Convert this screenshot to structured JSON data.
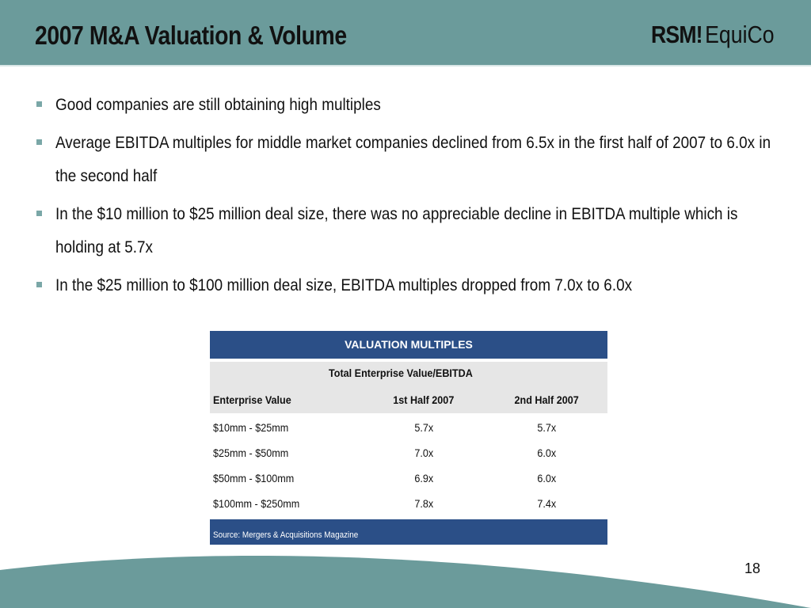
{
  "header": {
    "title": "2007 M&A Valuation & Volume",
    "logo_rsm": "RSM!",
    "logo_equico": "EquiCo"
  },
  "bullets": [
    "Good companies are still obtaining high multiples",
    "Average EBITDA multiples for middle market companies declined from 6.5x in the first half of 2007 to 6.0x in the second half",
    "In the $10 million to $25 million deal size, there was no appreciable decline in EBITDA multiple which is holding at 5.7x",
    "In the $25 million to $100 million deal size, EBITDA multiples dropped from 7.0x to 6.0x"
  ],
  "table": {
    "title": "VALUATION MULTIPLES",
    "super_header": "Total Enterprise Value/EBITDA",
    "columns": [
      "Enterprise Value",
      "1st Half 2007",
      "2nd Half 2007"
    ],
    "rows": [
      [
        "$10mm - $25mm",
        "5.7x",
        "5.7x"
      ],
      [
        "$25mm - $50mm",
        "7.0x",
        "6.0x"
      ],
      [
        "$50mm - $100mm",
        "6.9x",
        "6.0x"
      ],
      [
        "$100mm - $250mm",
        "7.8x",
        "7.4x"
      ]
    ],
    "source": "Source: Mergers & Acquisitions Magazine"
  },
  "page_number": "18",
  "colors": {
    "header_bg": "#6b9b9b",
    "table_navy": "#2b4f87",
    "table_gray": "#e6e6e6",
    "bullet": "#7aa7a7"
  }
}
